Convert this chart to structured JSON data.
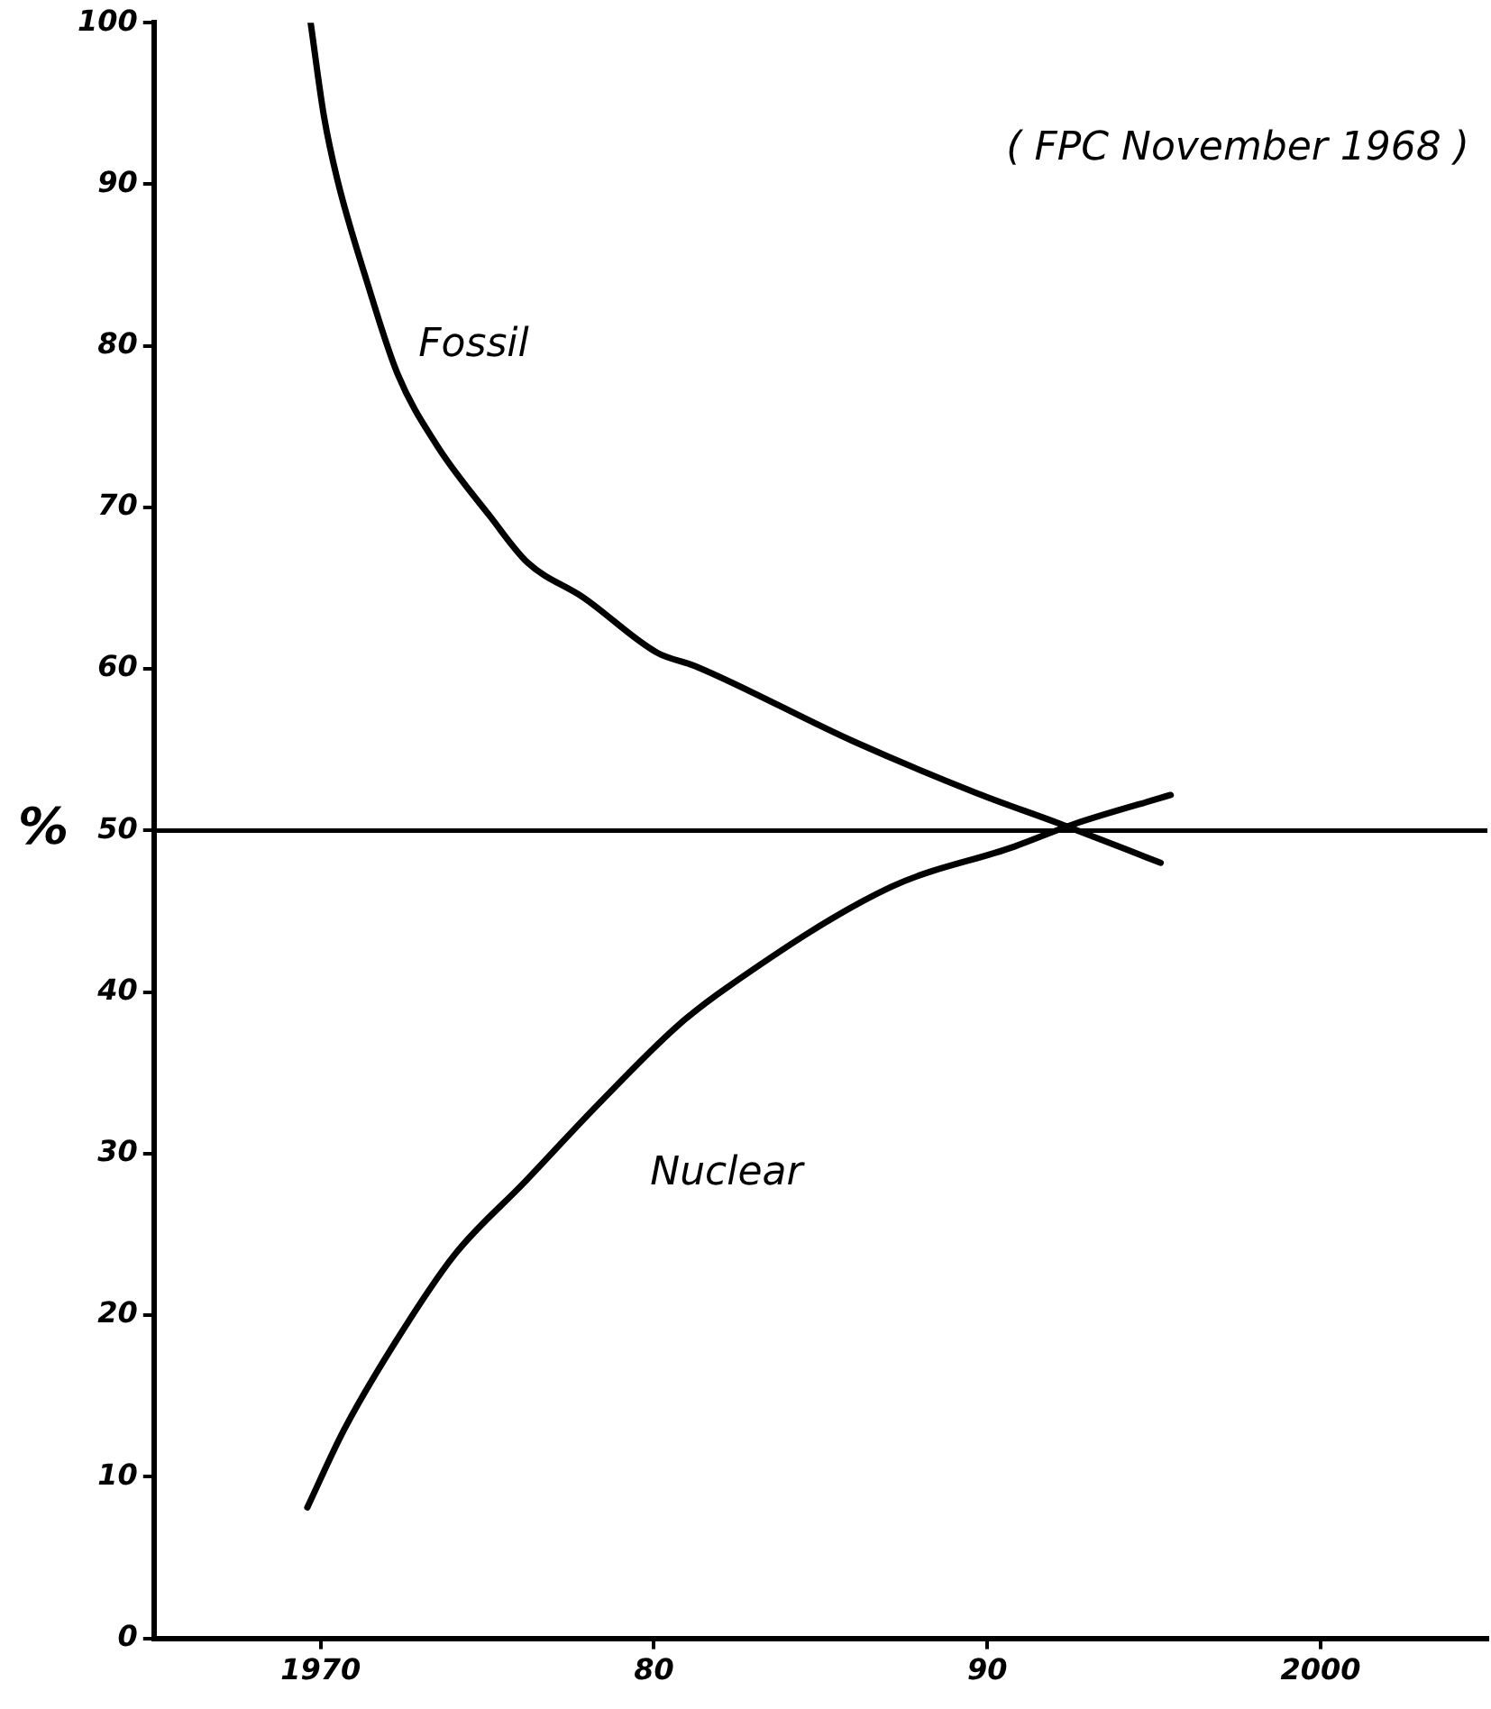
{
  "chart_data": {
    "type": "line",
    "ylabel": "%",
    "annotations": [
      "( FPC November 1968 )"
    ],
    "xlim": [
      1965,
      2005
    ],
    "ylim": [
      0,
      100
    ],
    "xticks": [
      1970,
      {
        "value": 1980,
        "label": "80"
      },
      {
        "value": 1990,
        "label": "90"
      },
      2000
    ],
    "yticks": [
      0,
      10,
      20,
      30,
      40,
      50,
      60,
      70,
      80,
      90,
      100
    ],
    "ref_lines": [
      {
        "axis": "y",
        "value": 50,
        "color": "#000000"
      }
    ],
    "grid": false,
    "legend": false,
    "marker": "none",
    "line_style": "solid",
    "series": [
      {
        "name": "Fossil",
        "color": "#000000",
        "x": [
          1969.7,
          1970.1,
          1970.5,
          1971.4,
          1972.3,
          1973.5,
          1975.1,
          1976.2,
          1977.9,
          1980.1,
          1981.2,
          1986.0,
          1989.7,
          1992.2,
          1995.2
        ],
        "values": [
          100,
          94.2,
          90.3,
          83.9,
          78.3,
          73.8,
          69.4,
          66.6,
          64.4,
          61.0,
          60.2,
          55.5,
          52.3,
          50.4,
          48.0
        ]
      },
      {
        "name": "Nuclear",
        "color": "#000000",
        "x": [
          1969.6,
          1970.7,
          1972.2,
          1974.0,
          1976.1,
          1978.3,
          1980.7,
          1982.2,
          1987.1,
          1990.8,
          1992.6,
          1995.5
        ],
        "values": [
          8.1,
          12.9,
          18.2,
          23.7,
          28.2,
          33.0,
          37.9,
          40.3,
          46.5,
          49.0,
          50.4,
          52.2
        ]
      }
    ]
  }
}
